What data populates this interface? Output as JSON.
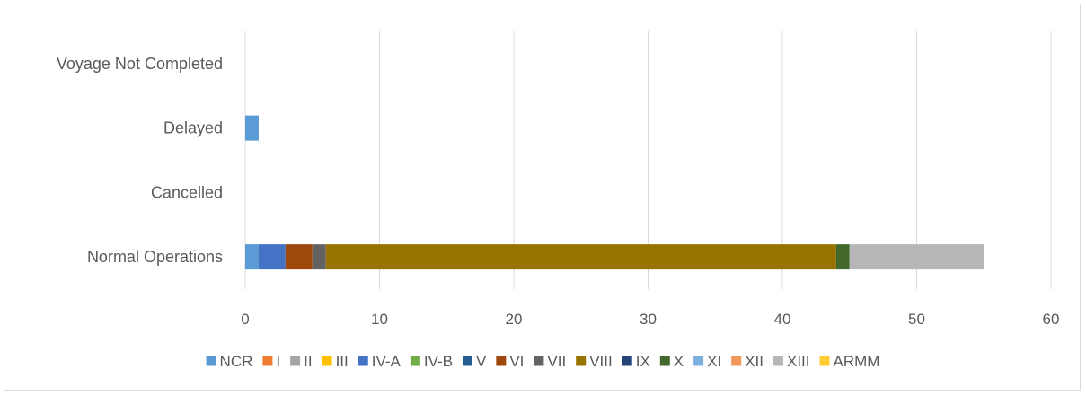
{
  "chart_data": {
    "type": "bar",
    "orientation": "horizontal",
    "stacked": true,
    "categories": [
      "Normal Operations",
      "Cancelled",
      "Delayed",
      "Voyage Not Completed"
    ],
    "xlim": [
      0,
      60
    ],
    "xticks": [
      0,
      10,
      20,
      30,
      40,
      50,
      60
    ],
    "grid": true,
    "legend_position": "bottom",
    "series": [
      {
        "name": "NCR",
        "color": "#5b9bd5",
        "values": [
          1,
          0,
          1,
          0
        ]
      },
      {
        "name": "I",
        "color": "#ed7d31",
        "values": [
          0,
          0,
          0,
          0
        ]
      },
      {
        "name": "II",
        "color": "#a5a5a5",
        "values": [
          0,
          0,
          0,
          0
        ]
      },
      {
        "name": "III",
        "color": "#ffc000",
        "values": [
          0,
          0,
          0,
          0
        ]
      },
      {
        "name": "IV-A",
        "color": "#4472c4",
        "values": [
          2,
          0,
          0,
          0
        ]
      },
      {
        "name": "IV-B",
        "color": "#70ad47",
        "values": [
          0,
          0,
          0,
          0
        ]
      },
      {
        "name": "V",
        "color": "#255e91",
        "values": [
          0,
          0,
          0,
          0
        ]
      },
      {
        "name": "VI",
        "color": "#9e480e",
        "values": [
          2,
          0,
          0,
          0
        ]
      },
      {
        "name": "VII",
        "color": "#636363",
        "values": [
          1,
          0,
          0,
          0
        ]
      },
      {
        "name": "VIII",
        "color": "#997300",
        "values": [
          38,
          0,
          0,
          0
        ]
      },
      {
        "name": "IX",
        "color": "#264478",
        "values": [
          0,
          0,
          0,
          0
        ]
      },
      {
        "name": "X",
        "color": "#43682b",
        "values": [
          1,
          0,
          0,
          0
        ]
      },
      {
        "name": "XI",
        "color": "#7cafdd",
        "values": [
          0,
          0,
          0,
          0
        ]
      },
      {
        "name": "XII",
        "color": "#f1975a",
        "values": [
          0,
          0,
          0,
          0
        ]
      },
      {
        "name": "XIII",
        "color": "#b7b7b7",
        "values": [
          10,
          0,
          0,
          0
        ]
      },
      {
        "name": "ARMM",
        "color": "#ffcd33",
        "values": [
          0,
          0,
          0,
          0
        ]
      }
    ]
  }
}
